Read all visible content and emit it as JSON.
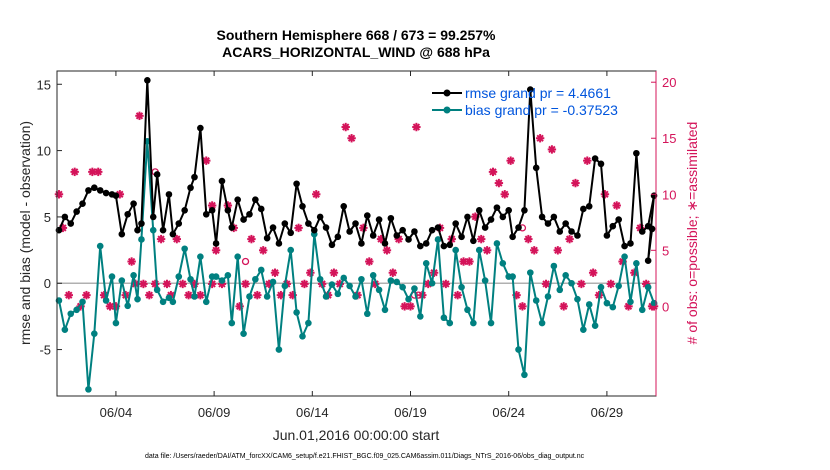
{
  "chart_data": {
    "type": "line",
    "title_line1": "Southern Hemisphere 668 / 673 = 99.257%",
    "title_line2": "ACARS_HORIZONTAL_WIND @ 688 hPa",
    "xlabel": "Jun.01,2016 00:00:00 start",
    "ylabel_left": "rmse and bias (model - observation)",
    "ylabel_right": "# of obs: o=possible; ∗=assimilated",
    "xlim": [
      0.0,
      30.5
    ],
    "ylim_left": [
      -8.5,
      16.0
    ],
    "ylim_right": [
      -8,
      21
    ],
    "x_ticks": [
      {
        "value": 3,
        "label": "06/04"
      },
      {
        "value": 8,
        "label": "06/09"
      },
      {
        "value": 13,
        "label": "06/14"
      },
      {
        "value": 18,
        "label": "06/19"
      },
      {
        "value": 23,
        "label": "06/24"
      },
      {
        "value": 28,
        "label": "06/29"
      }
    ],
    "y_ticks_left": [
      {
        "value": -5,
        "label": "-5"
      },
      {
        "value": 0,
        "label": "0"
      },
      {
        "value": 5,
        "label": "5"
      },
      {
        "value": 10,
        "label": "10"
      },
      {
        "value": 15,
        "label": "15"
      }
    ],
    "y_ticks_right": [
      {
        "value": 0,
        "label": "0"
      },
      {
        "value": 5,
        "label": "5"
      },
      {
        "value": 10,
        "label": "10"
      },
      {
        "value": 15,
        "label": "15"
      },
      {
        "value": 20,
        "label": "20"
      }
    ],
    "legend": [
      {
        "label": "rmse grand pr = 4.4661",
        "color": "#000000"
      },
      {
        "label": "bias grand pr = -0.37523",
        "color": "#008080"
      }
    ],
    "series": [
      {
        "name": "rmse",
        "color": "#000000",
        "x": [
          0.1,
          0.4,
          0.7,
          1.0,
          1.3,
          1.6,
          1.9,
          2.2,
          2.5,
          2.8,
          3.0,
          3.3,
          3.6,
          3.9,
          4.1,
          4.3,
          4.6,
          4.9,
          5.1,
          5.4,
          5.7,
          5.9,
          6.2,
          6.5,
          6.8,
          7.0,
          7.3,
          7.6,
          7.9,
          8.1,
          8.4,
          8.7,
          8.9,
          9.2,
          9.5,
          9.8,
          10.1,
          10.4,
          10.7,
          11.0,
          11.3,
          11.6,
          11.9,
          12.2,
          12.5,
          12.8,
          13.1,
          13.4,
          13.7,
          14.0,
          14.3,
          14.6,
          14.9,
          15.2,
          15.5,
          15.8,
          16.1,
          16.4,
          16.7,
          17.0,
          17.3,
          17.6,
          17.9,
          18.2,
          18.5,
          18.8,
          19.1,
          19.4,
          19.7,
          20.0,
          20.3,
          20.6,
          20.9,
          21.2,
          21.5,
          21.8,
          22.1,
          22.4,
          22.7,
          23.0,
          23.2,
          23.5,
          23.8,
          24.1,
          24.4,
          24.7,
          25.0,
          25.3,
          25.6,
          25.9,
          26.2,
          26.5,
          26.8,
          27.1,
          27.4,
          27.7,
          28.0,
          28.3,
          28.6,
          28.9,
          29.2,
          29.5,
          29.8,
          30.1,
          30.4
        ],
        "values": [
          4.0,
          5.0,
          4.5,
          5.4,
          6.0,
          7.0,
          7.2,
          7.0,
          6.8,
          6.7,
          6.6,
          3.7,
          5.2,
          6.0,
          4.0,
          4.5,
          15.3,
          5.0,
          8.2,
          4.0,
          6.7,
          3.7,
          4.5,
          5.5,
          7.2,
          8.0,
          11.7,
          5.2,
          5.5,
          3.0,
          7.7,
          5.5,
          4.2,
          6.3,
          4.8,
          5.2,
          6.3,
          5.6,
          3.4,
          4.2,
          3.0,
          4.5,
          3.8,
          7.5,
          5.8,
          4.5,
          4.0,
          5.0,
          4.2,
          2.9,
          3.5,
          5.8,
          3.9,
          4.5,
          3.0,
          5.1,
          3.6,
          4.8,
          3.0,
          4.9,
          3.6,
          4.0,
          3.3,
          3.9,
          2.8,
          3.0,
          4.0,
          4.2,
          2.8,
          2.9,
          4.5,
          3.5,
          5.0,
          3.2,
          5.5,
          4.2,
          4.8,
          5.7,
          5.0,
          5.5,
          3.5,
          4.2,
          5.5,
          14.6,
          8.7,
          5.0,
          4.5,
          5.0,
          3.9,
          4.5,
          3.9,
          3.6,
          5.6,
          5.8,
          9.4,
          9.0,
          3.6,
          4.3,
          4.8,
          2.8,
          3.0,
          9.8,
          3.9,
          4.3,
          6.6
        ],
        "extra_points": [
          {
            "x": 30.1,
            "y": 1.7
          },
          {
            "x": 30.3,
            "y": 4.1
          }
        ]
      },
      {
        "name": "bias",
        "color": "#008080",
        "x": [
          0.1,
          0.4,
          0.7,
          1.0,
          1.3,
          1.6,
          1.9,
          2.2,
          2.5,
          2.8,
          3.0,
          3.3,
          3.6,
          3.9,
          4.1,
          4.3,
          4.6,
          4.9,
          5.1,
          5.4,
          5.7,
          5.9,
          6.2,
          6.5,
          6.8,
          7.0,
          7.3,
          7.6,
          7.9,
          8.1,
          8.4,
          8.7,
          8.9,
          9.2,
          9.5,
          9.8,
          10.1,
          10.4,
          10.7,
          11.0,
          11.3,
          11.6,
          11.9,
          12.2,
          12.5,
          12.8,
          13.1,
          13.4,
          13.7,
          14.0,
          14.3,
          14.6,
          14.9,
          15.2,
          15.5,
          15.8,
          16.1,
          16.4,
          16.7,
          17.0,
          17.3,
          17.6,
          17.9,
          18.2,
          18.5,
          18.8,
          19.1,
          19.4,
          19.7,
          20.0,
          20.3,
          20.6,
          20.9,
          21.2,
          21.5,
          21.8,
          22.1,
          22.4,
          22.7,
          23.0,
          23.2,
          23.5,
          23.8,
          24.1,
          24.4,
          24.7,
          25.0,
          25.3,
          25.6,
          25.9,
          26.2,
          26.5,
          26.8,
          27.1,
          27.4,
          27.7,
          28.0,
          28.3,
          28.6,
          28.9,
          29.2,
          29.5,
          29.8,
          30.1,
          30.4
        ],
        "values": [
          -1.3,
          -3.5,
          -2.3,
          -2.0,
          -1.4,
          -8.0,
          -3.8,
          2.8,
          -1.3,
          0.5,
          -3.0,
          0.2,
          -1.7,
          0.6,
          -1.2,
          3.3,
          10.7,
          4.0,
          -0.5,
          -1.4,
          -1.1,
          -1.4,
          0.5,
          2.6,
          0.3,
          -1.0,
          2.0,
          -1.4,
          0.5,
          0.5,
          0.2,
          0.6,
          -3.0,
          2.0,
          -3.8,
          -1.0,
          0.3,
          1.0,
          -1.0,
          0.1,
          -5.0,
          -0.2,
          2.5,
          -2.2,
          -4.0,
          -3.0,
          3.7,
          0.3,
          -1.0,
          -0.1,
          -0.8,
          0.4,
          -0.2,
          -1.0,
          0.3,
          -2.3,
          0.6,
          -0.5,
          -2.0,
          0.2,
          0.1,
          -0.3,
          -1.2,
          -0.4,
          -2.5,
          1.5,
          0.0,
          3.3,
          -2.6,
          -3.0,
          2.5,
          -0.3,
          -2.0,
          -3.0,
          2.5,
          0.2,
          -3.0,
          3.0,
          1.5,
          0.5,
          0.5,
          -5.0,
          -6.9,
          0.8,
          -1.3,
          -3.0,
          -1.0,
          1.3,
          -0.5,
          0.6,
          0.0,
          -1.2,
          -3.5,
          -1.6,
          -3.2,
          -0.3,
          -1.5,
          -1.8,
          -0.2,
          2.0,
          -1.4,
          1.5,
          -2.0,
          -0.3,
          -1.5
        ]
      }
    ],
    "obs_assimilated": {
      "color": "#d4145a",
      "x": [
        0.1,
        0.3,
        0.6,
        0.9,
        1.2,
        1.5,
        1.8,
        2.1,
        2.4,
        2.7,
        3.0,
        3.2,
        3.5,
        3.8,
        4.0,
        4.2,
        4.4,
        4.7,
        5.0,
        5.3,
        5.6,
        5.8,
        6.1,
        6.4,
        6.7,
        7.0,
        7.3,
        7.6,
        7.9,
        8.1,
        8.4,
        8.7,
        9.0,
        9.3,
        9.6,
        9.9,
        10.2,
        10.5,
        10.8,
        11.1,
        11.4,
        11.7,
        12.0,
        12.3,
        12.6,
        12.9,
        13.2,
        13.5,
        13.8,
        14.1,
        14.4,
        14.7,
        15.0,
        15.3,
        15.6,
        15.9,
        16.2,
        16.5,
        16.8,
        17.1,
        17.4,
        17.7,
        18.0,
        18.3,
        18.6,
        18.9,
        19.2,
        19.5,
        19.8,
        20.1,
        20.4,
        20.7,
        21.0,
        21.3,
        21.6,
        21.9,
        22.2,
        22.5,
        22.8,
        23.1,
        23.4,
        23.7,
        24.0,
        24.3,
        24.6,
        24.9,
        25.2,
        25.5,
        25.8,
        26.1,
        26.4,
        26.7,
        27.0,
        27.3,
        27.6,
        27.9,
        28.2,
        28.5,
        28.8,
        29.1,
        29.4,
        29.7,
        30.0,
        30.3
      ],
      "values": [
        10.0,
        7.0,
        1.0,
        12.0,
        0.0,
        1.0,
        12.0,
        12.0,
        1.0,
        0.0,
        0.0,
        10.0,
        1.0,
        4.0,
        2.0,
        17.0,
        2.0,
        1.0,
        2.0,
        6.0,
        2.0,
        1.0,
        6.0,
        2.0,
        1.0,
        2.0,
        1.0,
        13.0,
        2.0,
        5.0,
        2.0,
        9.0,
        7.0,
        0.0,
        2.0,
        6.0,
        1.0,
        5.0,
        2.0,
        3.0,
        1.0,
        2.0,
        1.0,
        7.0,
        2.0,
        3.0,
        10.0,
        2.0,
        1.0,
        3.0,
        2.0,
        16.0,
        15.0,
        1.0,
        7.0,
        4.0,
        2.0,
        6.0,
        5.0,
        3.0,
        6.0,
        0.0,
        0.0,
        16.0,
        1.0,
        2.0,
        3.0,
        7.0,
        2.0,
        6.0,
        1.0,
        4.0,
        4.0,
        8.0,
        6.0,
        5.0,
        12.0,
        11.0,
        10.0,
        13.0,
        1.0,
        0.0,
        6.0,
        5.0,
        15.0,
        2.0,
        14.0,
        5.0,
        0.0,
        6.0,
        11.0,
        2.0,
        13.0,
        3.0,
        1.0,
        10.0,
        2.0,
        9.0,
        4.0,
        0.0,
        3.0,
        7.0,
        2.0,
        0.0
      ],
      "extra_points": [
        {
          "x": 7.9,
          "y": 9.0
        },
        {
          "x": 30.4,
          "y": 0.0
        }
      ]
    },
    "obs_possible": {
      "color": "#d4145a",
      "x": [
        5.0,
        9.6,
        18.2,
        18.4,
        23.7
      ],
      "values": [
        12.0,
        4.0,
        1.0,
        1.0,
        7.0
      ]
    }
  },
  "footer": {
    "data_file": "data file: /Users/raeder/DAI/ATM_forcXX/CAM6_setup/f.e21.FHIST_BGC.f09_025.CAM6assim.011/Diags_NTrS_2016-06/obs_diag_output.nc"
  }
}
